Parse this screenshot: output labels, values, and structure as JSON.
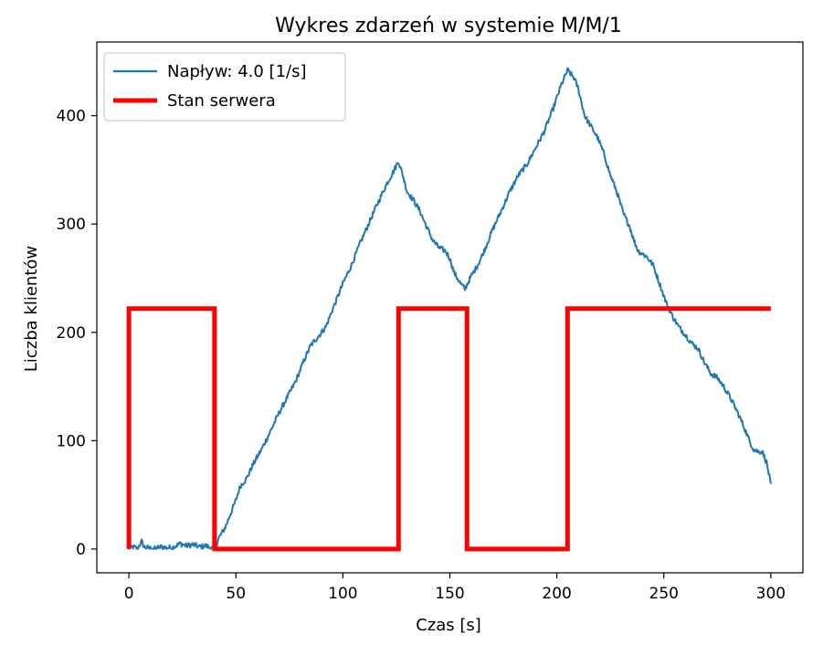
{
  "chart_data": {
    "type": "line",
    "title": "Wykres zdarzeń w systemie M/M/1",
    "xlabel": "Czas [s]",
    "ylabel": "Liczba klientów",
    "xlim": [
      -15,
      315
    ],
    "ylim": [
      -22,
      468
    ],
    "xticks": [
      0,
      50,
      100,
      150,
      200,
      250,
      300
    ],
    "yticks": [
      0,
      100,
      200,
      300,
      400
    ],
    "grid": false,
    "legend_position": "top-left",
    "series": [
      {
        "name": "Napływ: 4.0 [1/s]",
        "color": "#1f77b4",
        "kind": "noisy",
        "points": [
          [
            0,
            0
          ],
          [
            2,
            2
          ],
          [
            4,
            0
          ],
          [
            5,
            4
          ],
          [
            6,
            7
          ],
          [
            7,
            2
          ],
          [
            9,
            1
          ],
          [
            12,
            0
          ],
          [
            15,
            2
          ],
          [
            18,
            1
          ],
          [
            21,
            2
          ],
          [
            24,
            5
          ],
          [
            27,
            3
          ],
          [
            30,
            4
          ],
          [
            33,
            2
          ],
          [
            36,
            3
          ],
          [
            38,
            1
          ],
          [
            40,
            0
          ],
          [
            42,
            10
          ],
          [
            45,
            20
          ],
          [
            48,
            35
          ],
          [
            50,
            45
          ],
          [
            52,
            58
          ],
          [
            55,
            65
          ],
          [
            58,
            78
          ],
          [
            62,
            92
          ],
          [
            66,
            108
          ],
          [
            70,
            125
          ],
          [
            74,
            140
          ],
          [
            78,
            155
          ],
          [
            82,
            175
          ],
          [
            85,
            188
          ],
          [
            88,
            195
          ],
          [
            92,
            205
          ],
          [
            96,
            225
          ],
          [
            100,
            245
          ],
          [
            104,
            262
          ],
          [
            108,
            282
          ],
          [
            112,
            300
          ],
          [
            116,
            318
          ],
          [
            120,
            335
          ],
          [
            124,
            350
          ],
          [
            126,
            358
          ],
          [
            128,
            345
          ],
          [
            130,
            330
          ],
          [
            133,
            322
          ],
          [
            136,
            312
          ],
          [
            139,
            298
          ],
          [
            142,
            285
          ],
          [
            145,
            278
          ],
          [
            148,
            275
          ],
          [
            150,
            268
          ],
          [
            152,
            255
          ],
          [
            155,
            245
          ],
          [
            157,
            240
          ],
          [
            160,
            252
          ],
          [
            163,
            262
          ],
          [
            166,
            275
          ],
          [
            170,
            295
          ],
          [
            174,
            312
          ],
          [
            178,
            330
          ],
          [
            182,
            345
          ],
          [
            186,
            355
          ],
          [
            190,
            370
          ],
          [
            194,
            385
          ],
          [
            198,
            405
          ],
          [
            202,
            428
          ],
          [
            205,
            442
          ],
          [
            208,
            435
          ],
          [
            210,
            425
          ],
          [
            213,
            400
          ],
          [
            216,
            390
          ],
          [
            219,
            380
          ],
          [
            222,
            365
          ],
          [
            225,
            345
          ],
          [
            228,
            330
          ],
          [
            231,
            310
          ],
          [
            234,
            298
          ],
          [
            236,
            285
          ],
          [
            238,
            275
          ],
          [
            242,
            270
          ],
          [
            245,
            262
          ],
          [
            248,
            245
          ],
          [
            251,
            228
          ],
          [
            254,
            215
          ],
          [
            257,
            205
          ],
          [
            260,
            198
          ],
          [
            263,
            190
          ],
          [
            266,
            185
          ],
          [
            269,
            172
          ],
          [
            272,
            162
          ],
          [
            275,
            158
          ],
          [
            278,
            150
          ],
          [
            281,
            140
          ],
          [
            284,
            128
          ],
          [
            287,
            115
          ],
          [
            290,
            100
          ],
          [
            292,
            92
          ],
          [
            294,
            90
          ],
          [
            296,
            90
          ],
          [
            298,
            80
          ],
          [
            300,
            60
          ]
        ]
      },
      {
        "name": "Stan serwera",
        "color": "#ff0000",
        "kind": "step",
        "points": [
          [
            0,
            0
          ],
          [
            0,
            222
          ],
          [
            40,
            222
          ],
          [
            40,
            0
          ],
          [
            126,
            0
          ],
          [
            126,
            222
          ],
          [
            158,
            222
          ],
          [
            158,
            0
          ],
          [
            205,
            0
          ],
          [
            205,
            222
          ],
          [
            300,
            222
          ]
        ]
      }
    ]
  }
}
